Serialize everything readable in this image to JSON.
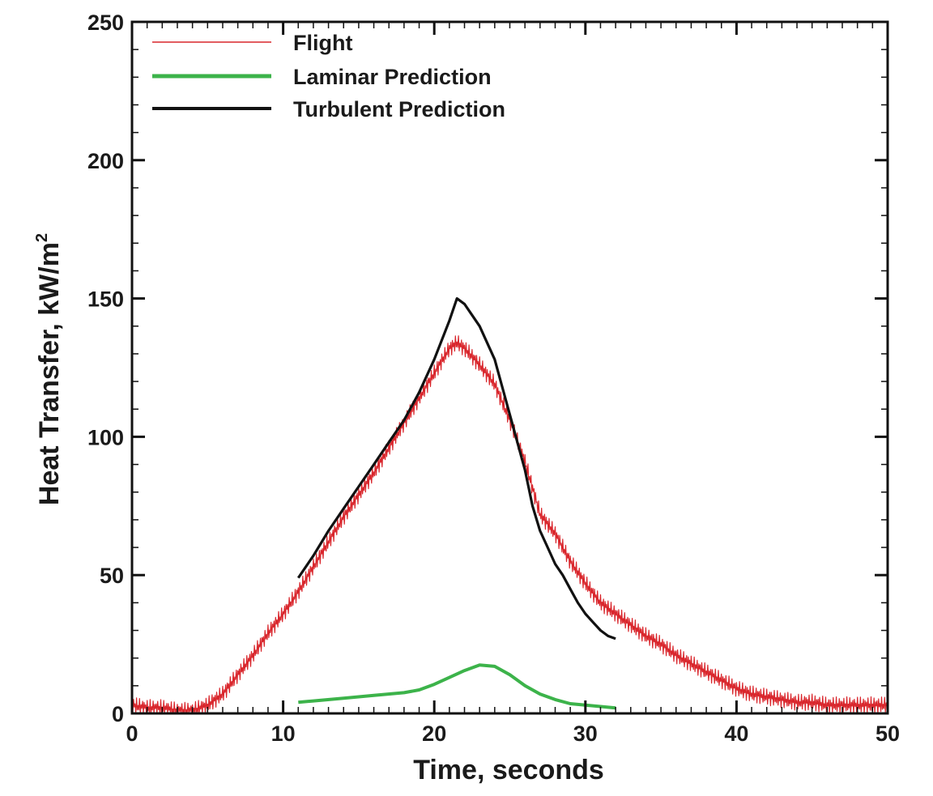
{
  "chart_data": {
    "type": "line",
    "title": "",
    "xlabel": "Time, seconds",
    "ylabel": "Heat Transfer, kW/m",
    "ylabel_superscript": "2",
    "xlim": [
      0,
      50
    ],
    "ylim": [
      0,
      250
    ],
    "xticks": [
      0,
      10,
      20,
      30,
      40,
      50
    ],
    "yticks": [
      0,
      50,
      100,
      150,
      200,
      250
    ],
    "x_minor_step": 1,
    "y_minor_step": 10,
    "grid": false,
    "legend_position": "top-left",
    "series": [
      {
        "name": "Flight",
        "color": "#d9262c",
        "x": [
          0,
          1,
          2,
          3,
          4,
          5,
          6,
          7,
          8,
          9,
          10,
          11,
          12,
          13,
          14,
          15,
          16,
          17,
          18,
          19,
          20,
          21,
          21.5,
          22,
          23,
          24,
          25,
          26,
          27,
          28,
          29,
          30,
          31,
          32,
          33,
          34,
          35,
          36,
          37,
          38,
          39,
          40,
          41,
          42,
          43,
          44,
          45,
          46,
          47,
          48,
          49,
          50
        ],
        "y": [
          3,
          2,
          2,
          1,
          1,
          3,
          7,
          14,
          21,
          29,
          36,
          44,
          53,
          62,
          71,
          79,
          87,
          96,
          105,
          114,
          123,
          132,
          134,
          132,
          126,
          119,
          106,
          91,
          72,
          65,
          55,
          47,
          40,
          36,
          32,
          28,
          25,
          21,
          18,
          15,
          12,
          9,
          7,
          6,
          5,
          4,
          4,
          3,
          3,
          3,
          3,
          3
        ],
        "noise_amplitude": 3
      },
      {
        "name": "Laminar Prediction",
        "color": "#3cb34a",
        "x": [
          11,
          12,
          14,
          16,
          18,
          19,
          20,
          21,
          22,
          23,
          24,
          25,
          26,
          27,
          28,
          29,
          30,
          31,
          32
        ],
        "y": [
          4,
          4.5,
          5.5,
          6.5,
          7.5,
          8.5,
          10.5,
          13,
          15.5,
          17.5,
          17,
          14,
          10,
          7,
          5,
          3.5,
          3,
          2.5,
          2
        ]
      },
      {
        "name": "Turbulent Prediction",
        "color": "#111111",
        "x": [
          11,
          12,
          13,
          14,
          15,
          16,
          17,
          18,
          19,
          20,
          21,
          21.5,
          22,
          23,
          24,
          25,
          26,
          26.5,
          27,
          27.5,
          28,
          28.5,
          29,
          29.5,
          30,
          30.5,
          31,
          31.5,
          32
        ],
        "y": [
          49,
          57,
          66,
          74,
          82,
          90,
          98,
          106,
          116,
          128,
          142,
          150,
          148,
          140,
          128,
          108,
          88,
          75,
          66,
          60,
          54,
          50,
          45,
          40,
          36,
          33,
          30,
          28,
          27
        ]
      }
    ]
  }
}
